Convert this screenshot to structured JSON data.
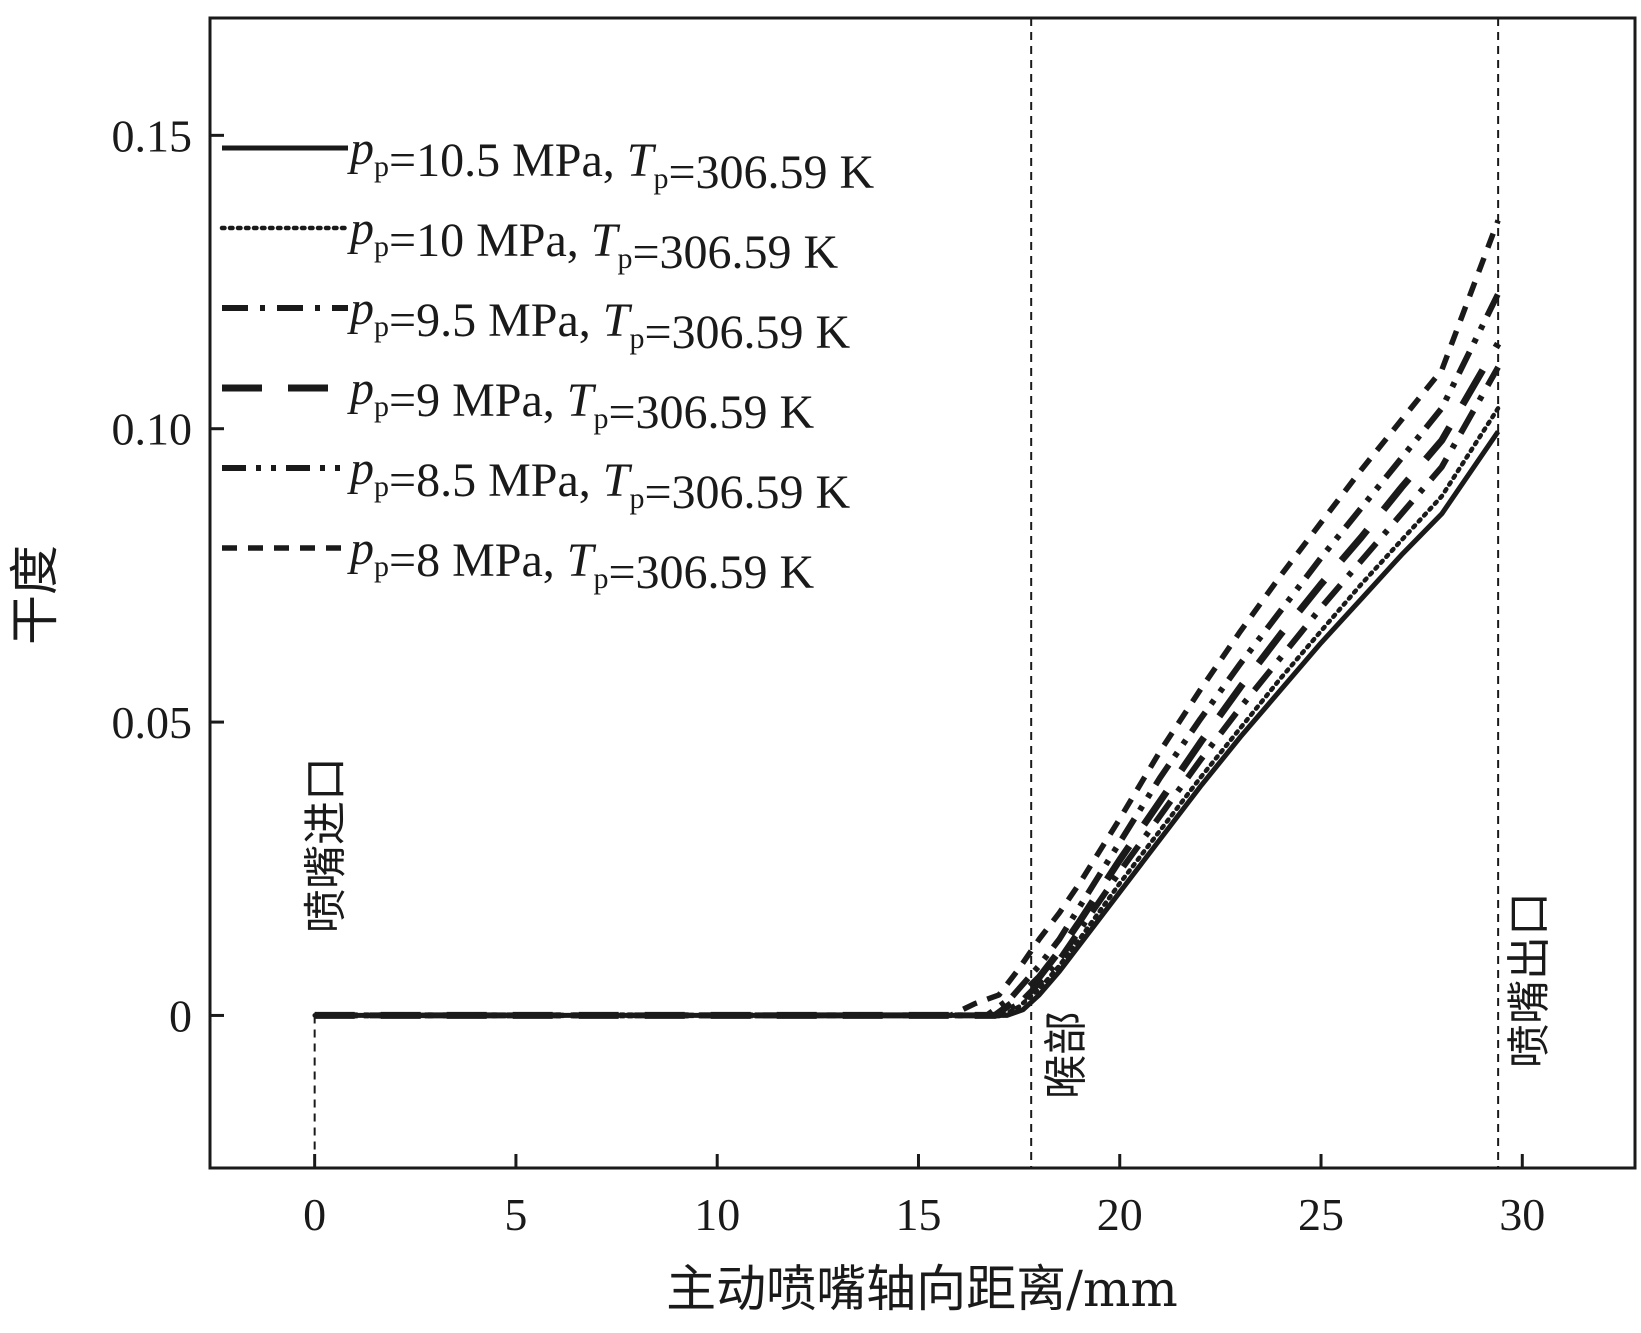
{
  "chart_data": {
    "type": "line",
    "xlabel": "主动喷嘴轴向距离/mm",
    "ylabel": "干度",
    "xlim": [
      -2.6,
      32.8
    ],
    "ylim": [
      -0.026,
      0.17
    ],
    "xticks": [
      0,
      5,
      10,
      15,
      20,
      25,
      30
    ],
    "xtick_labels": [
      "0",
      "5",
      "10",
      "15",
      "20",
      "25",
      "30"
    ],
    "yticks": [
      0,
      0.05,
      0.1,
      0.15
    ],
    "ytick_labels": [
      "0",
      "0.05",
      "0.10",
      "0.15"
    ],
    "grid": false,
    "legend_position": "top-left",
    "vertical_markers": [
      {
        "x": 0,
        "label": "喷嘴进口"
      },
      {
        "x": 17.8,
        "label": "喉部"
      },
      {
        "x": 29.4,
        "label": "喷嘴出口"
      }
    ],
    "series": [
      {
        "name": "p_p=10.5 MPa, T_p=306.59 K",
        "legend": {
          "p_var": "p",
          "p_sub": "p",
          "p_val": "=10.5 MPa, ",
          "t_var": "T",
          "t_sub": "p",
          "t_val": "=306.59 K"
        },
        "style": "solid",
        "x": [
          0,
          15,
          16.5,
          17.2,
          17.6,
          18.0,
          18.5,
          19,
          20,
          21,
          22,
          23,
          24,
          25,
          26,
          27,
          28,
          29.4
        ],
        "values": [
          0,
          0,
          0,
          0,
          0.001,
          0.0035,
          0.0075,
          0.012,
          0.021,
          0.03,
          0.039,
          0.0475,
          0.0555,
          0.0635,
          0.071,
          0.0785,
          0.0855,
          0.0995
        ]
      },
      {
        "name": "p_p=10 MPa, T_p=306.59 K",
        "legend": {
          "p_var": "p",
          "p_sub": "p",
          "p_val": "=10 MPa, ",
          "t_var": "T",
          "t_sub": "p",
          "t_val": "=306.59 K"
        },
        "style": "dotted",
        "x": [
          0,
          15,
          16.5,
          17.1,
          17.5,
          18.0,
          18.5,
          19,
          20,
          21,
          22,
          23,
          24,
          25,
          26,
          27,
          28,
          29.4
        ],
        "values": [
          0,
          0,
          0,
          0,
          0.0015,
          0.0045,
          0.0085,
          0.013,
          0.0225,
          0.0315,
          0.0405,
          0.049,
          0.0575,
          0.0655,
          0.0735,
          0.081,
          0.0885,
          0.1035
        ]
      },
      {
        "name": "p_p=9.5 MPa, T_p=306.59 K",
        "legend": {
          "p_var": "p",
          "p_sub": "p",
          "p_val": "=9.5 MPa, ",
          "t_var": "T",
          "t_sub": "p",
          "t_val": "=306.59 K"
        },
        "style": "dashdot",
        "x": [
          0,
          15,
          16.4,
          17.0,
          17.5,
          18.0,
          18.5,
          19,
          20,
          21,
          22,
          23,
          24,
          25,
          26,
          27,
          28,
          29.4
        ],
        "values": [
          0,
          0,
          0,
          0,
          0.002,
          0.0055,
          0.0095,
          0.0145,
          0.0245,
          0.034,
          0.0435,
          0.0525,
          0.061,
          0.0695,
          0.0775,
          0.0855,
          0.0935,
          0.1105
        ]
      },
      {
        "name": "p_p=9 MPa, T_p=306.59 K",
        "legend": {
          "p_var": "p",
          "p_sub": "p",
          "p_val": "=9 MPa, ",
          "t_var": "T",
          "t_sub": "p",
          "t_val": "=306.59 K"
        },
        "style": "longdash",
        "x": [
          0,
          15,
          16.3,
          16.9,
          17.4,
          18.0,
          18.5,
          19,
          20,
          21,
          22,
          23,
          24,
          25,
          26,
          27,
          28,
          29.4
        ],
        "values": [
          0,
          0,
          0,
          0,
          0.0025,
          0.0065,
          0.011,
          0.016,
          0.0265,
          0.0365,
          0.0465,
          0.056,
          0.065,
          0.0735,
          0.0815,
          0.09,
          0.098,
          0.1145
        ]
      },
      {
        "name": "p_p=8.5 MPa, T_p=306.59 K",
        "legend": {
          "p_var": "p",
          "p_sub": "p",
          "p_val": "=8.5 MPa, ",
          "t_var": "T",
          "t_sub": "p",
          "t_val": "=306.59 K"
        },
        "style": "dashdotdot",
        "x": [
          0,
          15,
          16.0,
          16.7,
          17.3,
          18.0,
          18.5,
          19,
          20,
          21,
          22,
          23,
          24,
          25,
          26,
          27,
          28,
          29.4
        ],
        "values": [
          0,
          0,
          0,
          0,
          0.003,
          0.0085,
          0.013,
          0.0185,
          0.0295,
          0.0405,
          0.0505,
          0.06,
          0.069,
          0.078,
          0.0865,
          0.095,
          0.1035,
          0.123
        ]
      },
      {
        "name": "p_p=8 MPa, T_p=306.59 K",
        "legend": {
          "p_var": "p",
          "p_sub": "p",
          "p_val": "=8 MPa, ",
          "t_var": "T",
          "t_sub": "p",
          "t_val": "=306.59 K"
        },
        "style": "shortdash",
        "x": [
          0,
          15,
          15.8,
          16.4,
          17.0,
          17.5,
          18.0,
          18.5,
          19,
          20,
          21,
          22,
          23,
          24,
          25,
          26,
          27,
          28,
          29.4
        ],
        "values": [
          0,
          0,
          0,
          0.002,
          0.0035,
          0.008,
          0.013,
          0.0175,
          0.0225,
          0.0335,
          0.045,
          0.0555,
          0.0655,
          0.075,
          0.084,
          0.093,
          0.1015,
          0.11,
          0.1355
        ]
      }
    ]
  }
}
